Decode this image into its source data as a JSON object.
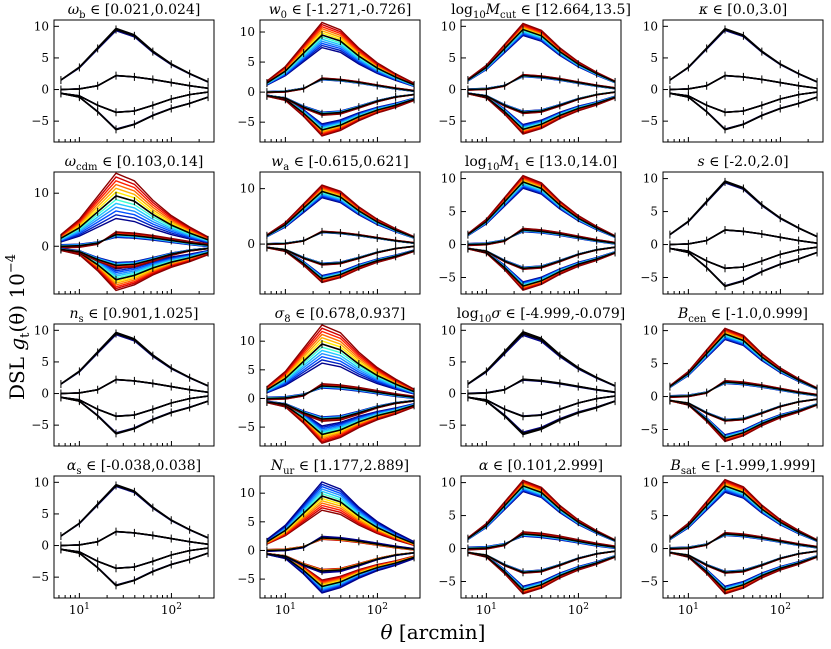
{
  "figure": {
    "ylabel": "DSL g_t(θ) 10^-4",
    "ylabel_parts": {
      "pre": "DSL ",
      "g": "g",
      "sub": "t",
      "post": "(θ) 10",
      "sup": "−4"
    },
    "xlabel": "θ [arcmin]",
    "xlabel_parts": {
      "sym": "θ",
      "rest": " [arcmin]"
    },
    "x_tick_labels": {
      "ten_base": "10",
      "exp1": "1",
      "exp2": "2"
    }
  },
  "chart_data": [
    {
      "type": "line",
      "title": "ω_b ∈ [0.021,0.024]",
      "t_sym": "ω",
      "t_sub": "b",
      "t_range": " ∈ [0.021,0.024]",
      "yticks": [
        -5,
        0,
        5,
        10
      ],
      "ylim": [
        -8.3,
        11
      ],
      "spread": [
        0.2,
        0.05,
        0.1
      ],
      "cmap": "dark"
    },
    {
      "type": "line",
      "title": "w_0 ∈ [-1.271,-0.726]",
      "t_sym": "w",
      "t_sub": "0",
      "t_range": " ∈ [-1.271,-0.726]",
      "yticks": [
        -5,
        0,
        5,
        10
      ],
      "ylim": [
        -8.3,
        12
      ],
      "spread": [
        2.2,
        0.35,
        1.6
      ],
      "cmap": "rainbow"
    },
    {
      "type": "line",
      "title": "log10 M_cut ∈ [12.664,13.5]",
      "t_sym": "log",
      "t_logsub": "10",
      "t_var": "M",
      "t_sub": "cut",
      "t_range": " ∈ [12.664,13.5]",
      "yticks": [
        -5,
        0,
        5,
        10
      ],
      "ylim": [
        -8.3,
        11
      ],
      "spread": [
        1.0,
        0.4,
        1.2
      ],
      "cmap": "rainbow"
    },
    {
      "type": "line",
      "title": "κ ∈ [0.0,3.0]",
      "t_sym": "κ",
      "t_sub": "",
      "t_range": " ∈ [0.0,3.0]",
      "yticks": [
        -5,
        0,
        5,
        10
      ],
      "ylim": [
        -8.3,
        11
      ],
      "spread": [
        0.15,
        0.05,
        0.1
      ],
      "cmap": "dark"
    },
    {
      "type": "line",
      "title": "ω_cdm ∈ [0.103,0.14]",
      "t_sym": "ω",
      "t_sub": "cdm",
      "t_range": " ∈ [0.103,0.14]",
      "yticks": [
        0,
        10
      ],
      "ylim": [
        -9,
        14
      ],
      "spread": [
        4.5,
        1.2,
        3.2
      ],
      "cmap": "rainbow"
    },
    {
      "type": "line",
      "title": "w_a ∈ [-0.615,0.621]",
      "t_sym": "w",
      "t_sub": "a",
      "t_range": " ∈ [-0.615,0.621]",
      "yticks": [
        0,
        10
      ],
      "ylim": [
        -9,
        13
      ],
      "spread": [
        1.2,
        0.3,
        1.0
      ],
      "cmap": "rainbow"
    },
    {
      "type": "line",
      "title": "log10 M_1 ∈ [13.0,14.0]",
      "t_sym": "log",
      "t_logsub": "10",
      "t_var": "M",
      "t_sub": "1",
      "t_range": " ∈ [13.0,14.0]",
      "yticks": [
        -5,
        0,
        5,
        10
      ],
      "ylim": [
        -7.5,
        11
      ],
      "spread": [
        1.0,
        0.6,
        1.0
      ],
      "cmap": "rainbow"
    },
    {
      "type": "line",
      "title": "s ∈ [-2.0,2.0]",
      "t_sym": "s",
      "t_sub": "",
      "t_range": " ∈ [-2.0,2.0]",
      "yticks": [
        -5,
        0,
        5,
        10
      ],
      "ylim": [
        -7.5,
        11
      ],
      "spread": [
        0.15,
        0.05,
        0.1
      ],
      "cmap": "dark"
    },
    {
      "type": "line",
      "title": "n_s ∈ [0.901,1.025]",
      "t_sym": "n",
      "t_sub": "s",
      "t_range": " ∈ [0.901,1.025]",
      "yticks": [
        -5,
        0,
        5,
        10
      ],
      "ylim": [
        -8.3,
        11
      ],
      "spread": [
        0.2,
        0.05,
        0.15
      ],
      "cmap": "dark"
    },
    {
      "type": "line",
      "title": "σ_8 ∈ [0.678,0.937]",
      "t_sym": "σ",
      "t_sub": "8",
      "t_range": " ∈ [0.678,0.937]",
      "yticks": [
        -5,
        0,
        5,
        10
      ],
      "ylim": [
        -8.3,
        13
      ],
      "spread": [
        3.5,
        0.9,
        2.4
      ],
      "cmap": "rainbow"
    },
    {
      "type": "line",
      "title": "log10 σ ∈ [-4.999,-0.079]",
      "t_sym": "log",
      "t_logsub": "10",
      "t_var": "σ",
      "t_sub": "",
      "t_range": " ∈ [-4.999,-0.079]",
      "yticks": [
        -5,
        0,
        5,
        10
      ],
      "ylim": [
        -8.3,
        11
      ],
      "spread": [
        0.3,
        0.2,
        0.3
      ],
      "cmap": "dark"
    },
    {
      "type": "line",
      "title": "B_cen ∈ [-1.0,0.999]",
      "t_sym": "B",
      "t_sub": "cen",
      "t_range": " ∈ [-1.0,0.999]",
      "yticks": [
        -5,
        0,
        5,
        10
      ],
      "ylim": [
        -7.5,
        11
      ],
      "spread": [
        0.9,
        0.5,
        0.8
      ],
      "cmap": "rainbow"
    },
    {
      "type": "line",
      "title": "α_s ∈ [-0.038,0.038]",
      "t_sym": "α",
      "t_sub": "s",
      "t_range": " ∈ [-0.038,0.038]",
      "yticks": [
        -5,
        0,
        5,
        10
      ],
      "ylim": [
        -8.3,
        11
      ],
      "spread": [
        0.15,
        0.05,
        0.1
      ],
      "cmap": "dark"
    },
    {
      "type": "line",
      "title": "N_ur ∈ [1.177,2.889]",
      "t_sym": "N",
      "t_sub": "ur",
      "t_range": " ∈ [1.177,2.889]",
      "yticks": [
        -5,
        0,
        5,
        10
      ],
      "ylim": [
        -8.3,
        13
      ],
      "spread": [
        2.6,
        0.6,
        1.8
      ],
      "cmap": "rainbow_r"
    },
    {
      "type": "line",
      "title": "α ∈ [0.101,2.999]",
      "t_sym": "α",
      "t_sub": "",
      "t_range": " ∈ [0.101,2.999]",
      "yticks": [
        -5,
        0,
        5,
        10
      ],
      "ylim": [
        -7.5,
        11
      ],
      "spread": [
        0.9,
        0.8,
        0.9
      ],
      "cmap": "rainbow"
    },
    {
      "type": "line",
      "title": "B_sat ∈ [-1.999,1.999]",
      "t_sym": "B",
      "t_sub": "sat",
      "t_range": " ∈ [-1.999,1.999]",
      "yticks": [
        -5,
        0,
        5,
        10
      ],
      "ylim": [
        -7.5,
        11
      ],
      "spread": [
        1.0,
        0.5,
        0.9
      ],
      "cmap": "rainbow"
    }
  ],
  "shared_series": {
    "x_arcmin": [
      6.3,
      10,
      15.8,
      25,
      39.6,
      62.8,
      99.5,
      157.7,
      250
    ],
    "upper": [
      1.5,
      3.5,
      6.5,
      9.5,
      8.5,
      6.0,
      4.0,
      2.5,
      1.2
    ],
    "middle": [
      0.0,
      0.1,
      0.6,
      2.2,
      2.0,
      1.6,
      1.1,
      0.6,
      0.2
    ],
    "lower": [
      -0.6,
      -1.2,
      -3.5,
      -6.3,
      -5.5,
      -4.1,
      -3.0,
      -2.2,
      -1.2
    ],
    "lower2": [
      -0.6,
      -1.0,
      -2.5,
      -3.6,
      -3.4,
      -2.5,
      -1.5,
      -0.8,
      -0.4
    ],
    "xlim": [
      5.3,
      290
    ]
  },
  "colors": {
    "rainbow": [
      "#00008b",
      "#0020c0",
      "#0050ff",
      "#2090ff",
      "#20c8ff",
      "#40ffd0",
      "#b0ff60",
      "#ffee00",
      "#ffb000",
      "#ff6a00",
      "#ff2000",
      "#d00000",
      "#8b0000"
    ],
    "rainbow_r": [
      "#8b0000",
      "#d00000",
      "#ff2000",
      "#ff6a00",
      "#ffb000",
      "#ffee00",
      "#b0ff60",
      "#40ffd0",
      "#20c8ff",
      "#2090ff",
      "#0050ff",
      "#0020c0",
      "#00008b"
    ],
    "dark": [
      "#00008b",
      "#1a1a6a",
      "#3a0000",
      "#000000"
    ],
    "fiducial": "#000000"
  }
}
